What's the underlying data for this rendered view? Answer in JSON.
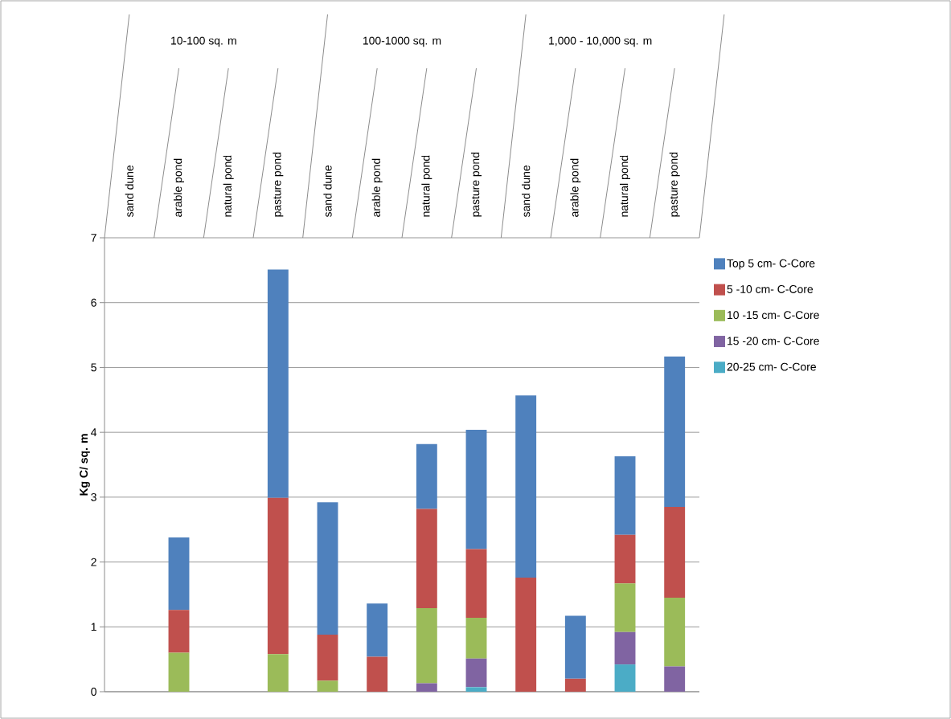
{
  "chart_data": {
    "type": "bar",
    "stacked": true,
    "ylabel": "Kg C/ sq. m",
    "categories": [
      "sand dune",
      "arable  pond",
      "natural pond",
      "pasture pond",
      "sand dune",
      "arable  pond",
      "natural pond",
      "pasture pond",
      "sand dune",
      "arable  pond",
      "natural pond",
      "pasture pond"
    ],
    "annotations": [
      "10-100 sq. m",
      "100-1000 sq. m",
      "1,000 - 10,000 sq. m"
    ],
    "series": [
      {
        "name": "20-25 cm- C-Core",
        "color": "#4bacc6",
        "values": [
          null,
          null,
          null,
          null,
          null,
          null,
          null,
          0.07,
          null,
          null,
          0.42,
          null
        ]
      },
      {
        "name": "15 -20 cm- C-Core",
        "color": "#8064a2",
        "values": [
          null,
          null,
          null,
          null,
          null,
          null,
          0.13,
          0.44,
          null,
          null,
          0.5,
          0.39
        ]
      },
      {
        "name": "10 -15 cm- C-Core",
        "color": "#9bbb59",
        "values": [
          null,
          0.6,
          null,
          0.58,
          0.17,
          null,
          1.16,
          0.63,
          null,
          null,
          0.75,
          1.06
        ]
      },
      {
        "name": "5 -10 cm- C-Core",
        "color": "#c0504d",
        "values": [
          null,
          0.66,
          null,
          2.41,
          0.71,
          0.54,
          1.53,
          1.06,
          1.76,
          0.2,
          0.75,
          1.4
        ]
      },
      {
        "name": "Top 5 cm- C-Core",
        "color": "#4f81bd",
        "values": [
          null,
          1.12,
          null,
          3.52,
          2.04,
          0.82,
          1.0,
          1.84,
          2.81,
          0.97,
          1.21,
          2.32
        ]
      }
    ],
    "ylim": [
      0,
      7
    ],
    "yticks": [
      0,
      1,
      2,
      3,
      4,
      5,
      6,
      7
    ],
    "grid": "y",
    "legend": "right"
  }
}
